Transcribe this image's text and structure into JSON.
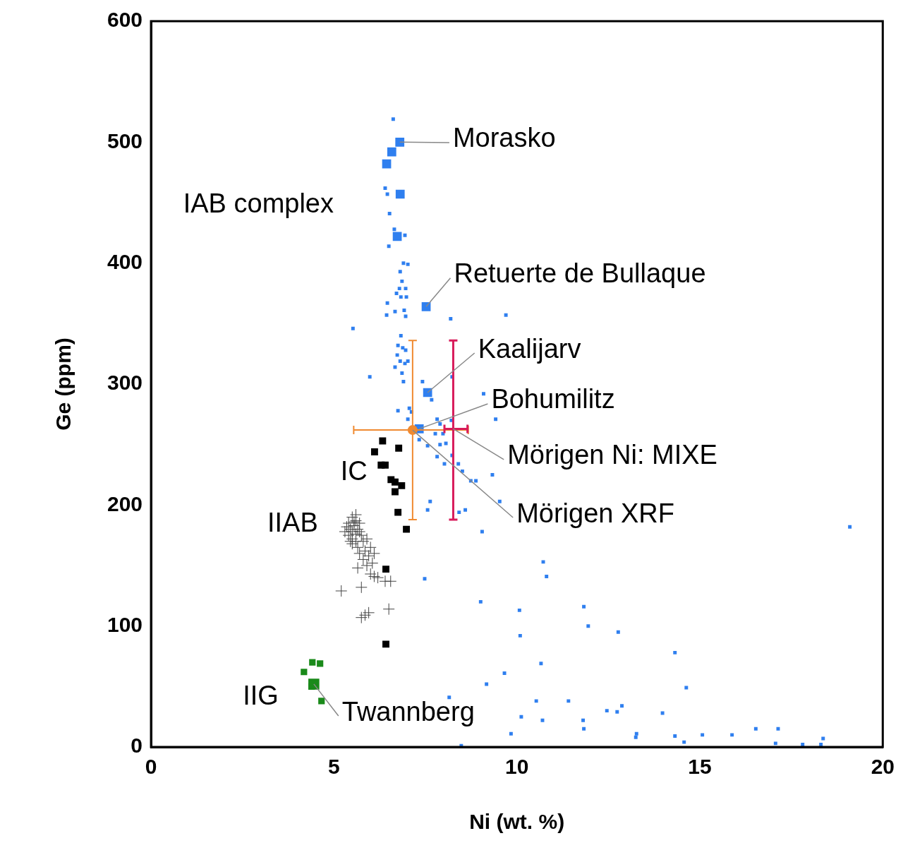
{
  "chart_data": {
    "type": "scatter",
    "x_label": "Ni (wt. %)",
    "y_label": "Ge (ppm)",
    "xlim": [
      0,
      20
    ],
    "ylim": [
      0,
      600
    ],
    "xticks": [
      0,
      5,
      10,
      15,
      20
    ],
    "yticks": [
      0,
      100,
      200,
      300,
      400,
      500,
      600
    ],
    "grid": false,
    "legend": false,
    "series": [
      {
        "color": "#2f7fef",
        "marker": "square",
        "x": [
          6.62,
          6.4,
          6.46,
          6.52,
          6.65,
          6.94,
          6.5,
          6.9,
          7.02,
          6.81,
          6.86,
          6.79,
          6.96,
          6.71,
          6.83,
          6.98,
          6.46,
          6.67,
          6.92,
          6.96,
          6.44,
          8.19,
          9.7,
          5.52,
          6.83,
          6.75,
          6.88,
          6.96,
          6.73,
          6.81,
          6.94,
          7.02,
          6.67,
          6.86,
          6.9,
          5.98,
          7.42,
          8.23,
          7.67,
          7.06,
          7.12,
          6.75,
          9.09,
          7.02,
          7.82,
          7.9,
          9.42,
          8.21,
          7.33,
          7.56,
          7.77,
          7.98,
          7.9,
          8.06,
          7.82,
          8.02,
          8.23,
          8.4,
          8.51,
          8.74,
          8.88,
          9.33,
          9.53,
          7.63,
          7.56,
          8.42,
          8.59,
          9.05,
          19.1,
          7.48,
          10.72,
          10.81,
          9.01,
          10.07,
          11.83,
          11.95,
          12.77,
          10.09,
          10.66,
          9.66,
          14.32,
          14.63,
          9.17,
          10.53,
          11.41,
          12.87,
          13.98,
          12.74,
          12.46,
          8.15,
          10.12,
          10.7,
          11.81,
          11.83,
          9.84,
          13.27,
          13.25,
          14.32,
          14.57,
          15.07,
          15.88,
          16.53,
          17.14,
          17.07,
          17.81,
          18.37,
          18.31,
          8.48
        ],
        "values": [
          519,
          462,
          457,
          441,
          428,
          423,
          414,
          400,
          399,
          393,
          385,
          379,
          379,
          375,
          372,
          372,
          367,
          360,
          361,
          356,
          357,
          354,
          357,
          346,
          340,
          332,
          330,
          328,
          324,
          319,
          317,
          319,
          314,
          309,
          302,
          306,
          302,
          306,
          287,
          280,
          277,
          278,
          292,
          271,
          271,
          267,
          271,
          270,
          254,
          249,
          259,
          259,
          250,
          251,
          240,
          234,
          241,
          234,
          228,
          220,
          220,
          225,
          203,
          203,
          196,
          194,
          196,
          178,
          182,
          139,
          153,
          141,
          120,
          113,
          116,
          100,
          95,
          92,
          69,
          61,
          78,
          49,
          52,
          38,
          38,
          34,
          28,
          29,
          30,
          41,
          25,
          22,
          22,
          15,
          11,
          11,
          8,
          9,
          4,
          10,
          10,
          15,
          15,
          3,
          2,
          7,
          2,
          1
        ]
      },
      {
        "color": "#2f7fef",
        "marker": "square",
        "x": [
          6.8,
          6.58,
          6.44,
          6.81,
          6.73,
          7.52,
          7.56,
          7.33
        ],
        "values": [
          500,
          492,
          482,
          457,
          422,
          364,
          293,
          263
        ]
      },
      {
        "color": "#000000",
        "marker": "square",
        "x": [
          6.33,
          6.11,
          6.77,
          6.29,
          6.4,
          6.56,
          6.67,
          6.85,
          6.67,
          6.75,
          6.98,
          6.42,
          6.42
        ],
        "values": [
          253,
          244,
          247,
          233,
          233,
          221,
          219,
          216,
          211,
          194,
          180,
          147,
          85
        ]
      },
      {
        "color": "#444444",
        "marker": "plus",
        "x": [
          5.4,
          5.5,
          5.6,
          5.45,
          5.5,
          5.55,
          5.6,
          5.65,
          5.5,
          5.4,
          5.7,
          5.6,
          5.75,
          5.5,
          5.65,
          5.8,
          5.9,
          5.7,
          5.85,
          6.0,
          5.8,
          5.95,
          6.1,
          5.9,
          5.6,
          5.35,
          5.45,
          5.55,
          5.7,
          5.3,
          6.05,
          5.65,
          6.2,
          6.4,
          6.0,
          6.1,
          5.2,
          5.75,
          5.75,
          5.85,
          5.95,
          6.5,
          6.55
        ],
        "values": [
          185,
          190,
          192,
          180,
          178,
          183,
          176,
          180,
          172,
          175,
          185,
          170,
          175,
          168,
          165,
          170,
          172,
          160,
          162,
          165,
          155,
          158,
          160,
          150,
          187,
          182,
          170,
          186,
          178,
          178,
          152,
          148,
          140,
          137,
          143,
          141,
          129,
          132,
          107,
          109,
          111,
          114,
          137
        ]
      },
      {
        "color": "#1a8a1a",
        "marker": "square",
        "x": [
          4.18,
          4.41,
          4.62,
          4.39,
          4.66
        ],
        "values": [
          62,
          70,
          69,
          50,
          38
        ]
      },
      {
        "color": "#1a8a1a",
        "marker": "square",
        "x": [
          4.45
        ],
        "values": [
          52
        ]
      },
      {
        "color": "#f08a30",
        "marker": "circle",
        "x": [
          7.15
        ],
        "values": [
          262
        ],
        "x_error": [
          [
            5.54,
            8.67
          ]
        ],
        "y_error": [
          [
            188,
            336
          ]
        ]
      },
      {
        "color": "#d81b5a",
        "marker": "none",
        "x": [
          8.26
        ],
        "values": [
          263
        ],
        "x_error": [
          [
            8.02,
            8.65
          ]
        ],
        "y_error": [
          [
            188,
            336
          ]
        ]
      }
    ],
    "annotations": [
      {
        "text": "Morasko",
        "x": 8.25,
        "y": 502,
        "point": [
          6.8,
          500
        ]
      },
      {
        "text": "IAB complex",
        "x": 0.88,
        "y": 448
      },
      {
        "text": "Retuerte de Bullaque",
        "x": 8.28,
        "y": 390,
        "point": [
          7.52,
          364
        ]
      },
      {
        "text": "Kaalijarv",
        "x": 8.94,
        "y": 328,
        "point": [
          7.56,
          293
        ]
      },
      {
        "text": "Bohumilitz",
        "x": 9.3,
        "y": 286,
        "point": [
          7.33,
          263
        ]
      },
      {
        "text": "Mörigen Ni: MIXE",
        "x": 9.74,
        "y": 240,
        "point": [
          8.26,
          263
        ]
      },
      {
        "text": "Mörigen XRF",
        "x": 9.99,
        "y": 192,
        "point": [
          7.15,
          262
        ]
      },
      {
        "text": "IC",
        "x": 5.18,
        "y": 227
      },
      {
        "text": "IIAB",
        "x": 3.18,
        "y": 184
      },
      {
        "text": "IIG",
        "x": 2.51,
        "y": 41
      },
      {
        "text": "Twannberg",
        "x": 5.22,
        "y": 28,
        "point": [
          4.45,
          52
        ]
      }
    ]
  }
}
